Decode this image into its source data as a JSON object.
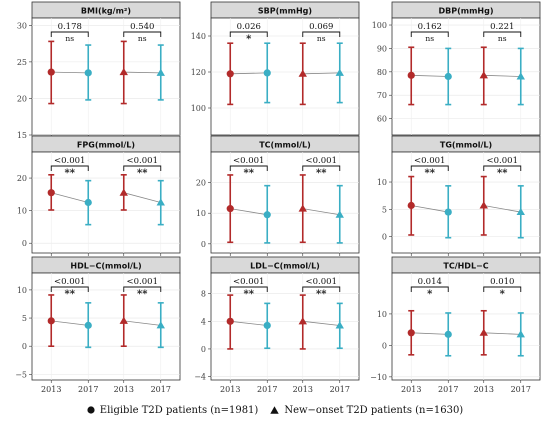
{
  "chart_data": {
    "type": "scatter",
    "colors": {
      "y2013": "#b22a2a",
      "y2017": "#3aaec4"
    },
    "legend": [
      {
        "marker": "circle",
        "label": "Eligible T2D patients (n=1981)"
      },
      {
        "marker": "triangle",
        "label": "New−onset T2D patients (n=1630)"
      }
    ],
    "panels": [
      {
        "title": "BMI(kg/m²)",
        "ylim": [
          15,
          31
        ],
        "yticks": [
          15,
          20,
          25,
          30
        ],
        "x_labels": [
          "2013",
          "2017",
          "2013",
          "2017"
        ],
        "groups": [
          {
            "marker": "circle",
            "points": [
              {
                "year": "2013",
                "mean": 23.6,
                "low": 19.3,
                "high": 27.8
              },
              {
                "year": "2017",
                "mean": 23.5,
                "low": 19.8,
                "high": 27.3
              }
            ],
            "p": "0.178",
            "sig": "ns"
          },
          {
            "marker": "triangle",
            "points": [
              {
                "year": "2013",
                "mean": 23.6,
                "low": 19.3,
                "high": 27.8
              },
              {
                "year": "2017",
                "mean": 23.5,
                "low": 19.8,
                "high": 27.3
              }
            ],
            "p": "0.540",
            "sig": "ns"
          }
        ]
      },
      {
        "title": "SBP(mmHg)",
        "ylim": [
          85,
          150
        ],
        "yticks": [
          100,
          120,
          140
        ],
        "x_labels": [
          "2013",
          "2017",
          "2013",
          "2017"
        ],
        "groups": [
          {
            "marker": "circle",
            "points": [
              {
                "year": "2013",
                "mean": 119,
                "low": 102,
                "high": 136
              },
              {
                "year": "2017",
                "mean": 119.5,
                "low": 103,
                "high": 136
              }
            ],
            "p": "0.026",
            "sig": "*"
          },
          {
            "marker": "triangle",
            "points": [
              {
                "year": "2013",
                "mean": 119,
                "low": 102,
                "high": 136
              },
              {
                "year": "2017",
                "mean": 119.5,
                "low": 103,
                "high": 136
              }
            ],
            "p": "0.069",
            "sig": "ns"
          }
        ]
      },
      {
        "title": "DBP(mmHg)",
        "ylim": [
          53,
          103
        ],
        "yticks": [
          60,
          70,
          80,
          90,
          100
        ],
        "x_labels": [
          "2013",
          "2017",
          "2013",
          "2017"
        ],
        "groups": [
          {
            "marker": "circle",
            "points": [
              {
                "year": "2013",
                "mean": 78.5,
                "low": 66,
                "high": 90.5
              },
              {
                "year": "2017",
                "mean": 78,
                "low": 66,
                "high": 90
              }
            ],
            "p": "0.162",
            "sig": "ns"
          },
          {
            "marker": "triangle",
            "points": [
              {
                "year": "2013",
                "mean": 78.5,
                "low": 66,
                "high": 90.5
              },
              {
                "year": "2017",
                "mean": 78,
                "low": 66,
                "high": 90
              }
            ],
            "p": "0.221",
            "sig": "ns"
          }
        ]
      },
      {
        "title": "FPG(mmol/L)",
        "ylim": [
          -3,
          28
        ],
        "yticks": [
          0,
          10,
          20
        ],
        "x_labels": [
          "2013",
          "2017",
          "2013",
          "2017"
        ],
        "groups": [
          {
            "marker": "circle",
            "points": [
              {
                "year": "2013",
                "mean": 15.5,
                "low": 10.2,
                "high": 21
              },
              {
                "year": "2017",
                "mean": 12.5,
                "low": 5.7,
                "high": 19.2
              }
            ],
            "p": "<0.001",
            "sig": "**"
          },
          {
            "marker": "triangle",
            "points": [
              {
                "year": "2013",
                "mean": 15.5,
                "low": 10.2,
                "high": 21
              },
              {
                "year": "2017",
                "mean": 12.5,
                "low": 5.7,
                "high": 19.2
              }
            ],
            "p": "<0.001",
            "sig": "**"
          }
        ]
      },
      {
        "title": "TC(mmol/L)",
        "ylim": [
          -3,
          30
        ],
        "yticks": [
          0,
          10,
          20
        ],
        "x_labels": [
          "2013",
          "2017",
          "2013",
          "2017"
        ],
        "groups": [
          {
            "marker": "circle",
            "points": [
              {
                "year": "2013",
                "mean": 11.5,
                "low": 0.5,
                "high": 22.5
              },
              {
                "year": "2017",
                "mean": 9.5,
                "low": 0.3,
                "high": 19
              }
            ],
            "p": "<0.001",
            "sig": "**"
          },
          {
            "marker": "triangle",
            "points": [
              {
                "year": "2013",
                "mean": 11.5,
                "low": 0.5,
                "high": 22.5
              },
              {
                "year": "2017",
                "mean": 9.5,
                "low": 0.3,
                "high": 19
              }
            ],
            "p": "<0.001",
            "sig": "**"
          }
        ]
      },
      {
        "title": "TG(mmol/L)",
        "ylim": [
          -3,
          15.5
        ],
        "yticks": [
          0,
          5,
          10
        ],
        "x_labels": [
          "2013",
          "2017",
          "2013",
          "2017"
        ],
        "groups": [
          {
            "marker": "circle",
            "points": [
              {
                "year": "2013",
                "mean": 5.7,
                "low": 0.3,
                "high": 11
              },
              {
                "year": "2017",
                "mean": 4.5,
                "low": -0.2,
                "high": 9.3
              }
            ],
            "p": "<0.001",
            "sig": "**"
          },
          {
            "marker": "triangle",
            "points": [
              {
                "year": "2013",
                "mean": 5.7,
                "low": 0.3,
                "high": 11
              },
              {
                "year": "2017",
                "mean": 4.5,
                "low": -0.2,
                "high": 9.3
              }
            ],
            "p": "<0.001",
            "sig": "**"
          }
        ]
      },
      {
        "title": "HDL−C(mmol/L)",
        "ylim": [
          -6,
          13
        ],
        "yticks": [
          -5,
          0,
          5,
          10
        ],
        "x_labels": [
          "2013",
          "2017",
          "2013",
          "2017"
        ],
        "groups": [
          {
            "marker": "circle",
            "points": [
              {
                "year": "2013",
                "mean": 4.5,
                "low": 0,
                "high": 9.1
              },
              {
                "year": "2017",
                "mean": 3.7,
                "low": -0.2,
                "high": 7.7
              }
            ],
            "p": "<0.001",
            "sig": "**"
          },
          {
            "marker": "triangle",
            "points": [
              {
                "year": "2013",
                "mean": 4.5,
                "low": 0,
                "high": 9.1
              },
              {
                "year": "2017",
                "mean": 3.7,
                "low": -0.2,
                "high": 7.7
              }
            ],
            "p": "<0.001",
            "sig": "**"
          }
        ]
      },
      {
        "title": "LDL−C(mmol/L)",
        "ylim": [
          -4.5,
          11
        ],
        "yticks": [
          -4,
          0,
          4,
          8
        ],
        "x_labels": [
          "2013",
          "2017",
          "2013",
          "2017"
        ],
        "groups": [
          {
            "marker": "circle",
            "points": [
              {
                "year": "2013",
                "mean": 4,
                "low": 0,
                "high": 7.8
              },
              {
                "year": "2017",
                "mean": 3.4,
                "low": 0.1,
                "high": 6.6
              }
            ],
            "p": "<0.001",
            "sig": "**"
          },
          {
            "marker": "triangle",
            "points": [
              {
                "year": "2013",
                "mean": 4,
                "low": 0,
                "high": 7.8
              },
              {
                "year": "2017",
                "mean": 3.4,
                "low": 0.1,
                "high": 6.6
              }
            ],
            "p": "<0.001",
            "sig": "**"
          }
        ]
      },
      {
        "title": "TC/HDL−C",
        "ylim": [
          -11,
          23
        ],
        "yticks": [
          -10,
          0,
          10
        ],
        "x_labels": [
          "2013",
          "2017",
          "2013",
          "2017"
        ],
        "groups": [
          {
            "marker": "circle",
            "points": [
              {
                "year": "2013",
                "mean": 4,
                "low": -3,
                "high": 11
              },
              {
                "year": "2017",
                "mean": 3.5,
                "low": -3.3,
                "high": 10.3
              }
            ],
            "p": "0.014",
            "sig": "*"
          },
          {
            "marker": "triangle",
            "points": [
              {
                "year": "2013",
                "mean": 4,
                "low": -3,
                "high": 11
              },
              {
                "year": "2017",
                "mean": 3.5,
                "low": -3.3,
                "high": 10.3
              }
            ],
            "p": "0.010",
            "sig": "*"
          }
        ]
      }
    ]
  }
}
